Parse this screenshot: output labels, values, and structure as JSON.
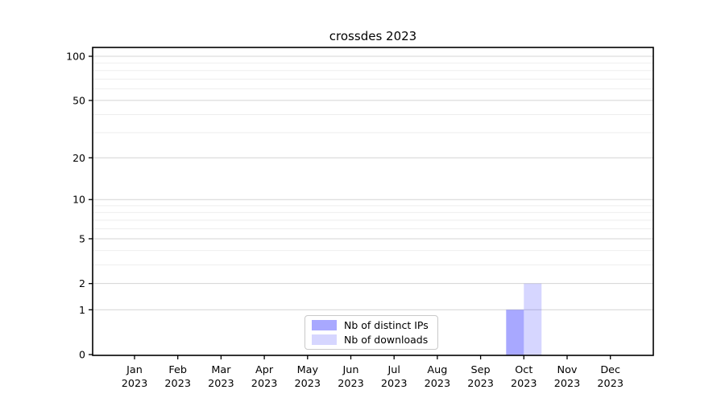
{
  "chart_data": {
    "type": "bar",
    "title": "crossdes 2023",
    "categories": [
      "Jan",
      "Feb",
      "Mar",
      "Apr",
      "May",
      "Jun",
      "Jul",
      "Aug",
      "Sep",
      "Oct",
      "Nov",
      "Dec"
    ],
    "category_year": "2023",
    "series": [
      {
        "name": "Nb of distinct IPs",
        "color": "#0000ff",
        "alpha": 0.34,
        "values": [
          0,
          0,
          0,
          0,
          0,
          0,
          0,
          0,
          0,
          1,
          0,
          0
        ]
      },
      {
        "name": "Nb of downloads",
        "color": "#0000ff",
        "alpha": 0.16,
        "values": [
          0,
          0,
          0,
          0,
          0,
          0,
          0,
          0,
          0,
          2,
          0,
          0
        ]
      }
    ],
    "xlabel": "",
    "ylabel": "",
    "yscale": "log1p",
    "y_ticks_major": [
      0,
      1,
      2,
      5,
      10,
      20,
      50,
      100
    ],
    "y_ticks_minor": [
      3,
      4,
      6,
      7,
      8,
      9,
      30,
      40,
      60,
      70,
      80,
      90
    ],
    "ylim": [
      0,
      116
    ],
    "grid": "horizontal",
    "legend_position": "lower center"
  },
  "colors": {
    "background": "#ffffff",
    "axis": "#000000",
    "text": "#000000",
    "grid_major": "#d4d4d4",
    "grid_minor": "#eeeeee",
    "legend_border": "#c9c9c9"
  }
}
